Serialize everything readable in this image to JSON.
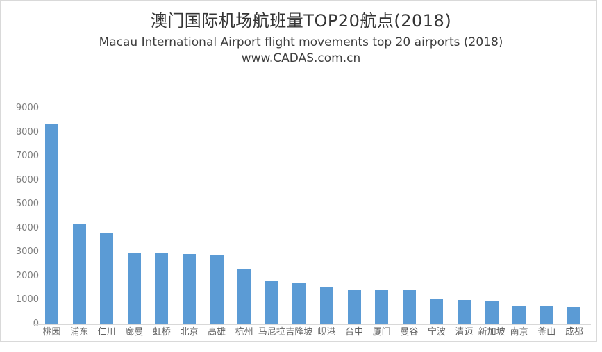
{
  "header": {
    "title": "澳门国际机场航班量TOP20航点(2018)",
    "subtitle": "Macau International Airport  flight movements top 20 airports (2018)",
    "source_url": "www.CADAS.com.cn"
  },
  "chart_data": {
    "type": "bar",
    "title": "澳门国际机场航班量TOP20航点(2018)",
    "subtitle": "Macau International Airport  flight movements top 20 airports (2018)",
    "source": "www.CADAS.com.cn",
    "categories": [
      "桃园",
      "浦东",
      "仁川",
      "廊曼",
      "虹桥",
      "北京",
      "高雄",
      "杭州",
      "马尼拉",
      "吉隆坡",
      "岘港",
      "台中",
      "厦门",
      "曼谷",
      "宁波",
      "清迈",
      "新加坡",
      "南京",
      "釜山",
      "成都"
    ],
    "values": [
      8310,
      4170,
      3770,
      2950,
      2920,
      2890,
      2830,
      2270,
      1770,
      1670,
      1540,
      1420,
      1400,
      1380,
      1010,
      990,
      930,
      720,
      710,
      690
    ],
    "xlabel": "",
    "ylabel": "",
    "ylim": [
      0,
      9000
    ],
    "yticks": [
      0,
      1000,
      2000,
      3000,
      4000,
      5000,
      6000,
      7000,
      8000,
      9000
    ],
    "grid": false,
    "legend": false,
    "bar_color": "#5B9BD5",
    "axis_line_color": "#D8D8D8"
  }
}
